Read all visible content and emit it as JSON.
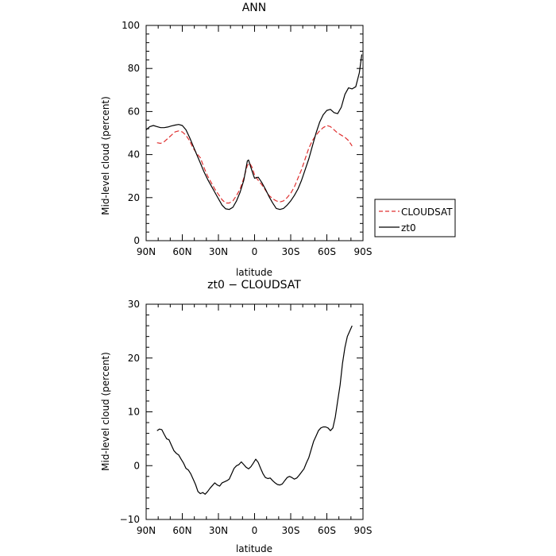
{
  "chart_data": [
    {
      "type": "line",
      "title": "ANN",
      "xlabel": "latitude",
      "ylabel": "Mid-level cloud (percent)",
      "xlim": [
        90,
        -90
      ],
      "ylim": [
        0,
        100
      ],
      "x_ticks": [
        90,
        60,
        30,
        0,
        -30,
        -60,
        -90
      ],
      "x_tick_labels": [
        "90N",
        "60N",
        "30N",
        "0",
        "30S",
        "60S",
        "90S"
      ],
      "y_ticks": [
        0,
        20,
        40,
        60,
        80,
        100
      ],
      "y_tick_labels": [
        "0",
        "20",
        "40",
        "60",
        "80",
        "100"
      ],
      "grid": false,
      "legend": "right",
      "series": [
        {
          "name": "CLOUDSAT",
          "color": "#e03030",
          "dash": "dashed",
          "x": [
            81,
            78,
            75,
            72,
            69,
            66,
            63,
            60,
            57,
            54,
            51,
            48,
            45,
            42,
            39,
            36,
            33,
            30,
            27,
            24,
            21,
            18,
            15,
            12,
            9,
            7,
            6,
            4,
            2,
            0,
            -3,
            -6,
            -9,
            -12,
            -15,
            -18,
            -21,
            -24,
            -27,
            -30,
            -33,
            -36,
            -39,
            -42,
            -45,
            -48,
            -51,
            -54,
            -57,
            -60,
            -63,
            -66,
            -69,
            -72,
            -75,
            -78,
            -81
          ],
          "y": [
            45.5,
            45.2,
            46,
            47.5,
            49,
            50.5,
            51,
            50.5,
            49,
            46.5,
            43,
            40.5,
            38.5,
            34,
            30,
            27,
            24,
            21.5,
            19,
            17.5,
            17.5,
            18.5,
            21,
            24,
            29,
            33,
            35,
            36,
            34,
            30.5,
            28,
            26,
            23.5,
            21,
            19.5,
            18.5,
            18,
            18.5,
            20,
            22,
            25,
            29,
            33,
            38,
            43,
            46.5,
            49,
            51,
            52.5,
            53.5,
            53,
            51.5,
            50,
            49,
            48,
            46.5,
            44
          ]
        },
        {
          "name": "zt0",
          "color": "#000000",
          "dash": "solid",
          "x": [
            90,
            87,
            84,
            81,
            78,
            75,
            72,
            69,
            66,
            63,
            60,
            57,
            54,
            51,
            48,
            45,
            42,
            39,
            36,
            33,
            30,
            27,
            24,
            21,
            18,
            15,
            12,
            9,
            7,
            6,
            5,
            3,
            1,
            0,
            -3,
            -6,
            -9,
            -12,
            -15,
            -18,
            -21,
            -24,
            -27,
            -30,
            -33,
            -36,
            -39,
            -42,
            -45,
            -48,
            -51,
            -54,
            -57,
            -60,
            -63,
            -66,
            -69,
            -72,
            -75,
            -78,
            -81,
            -84,
            -87,
            -89
          ],
          "y": [
            51.5,
            53,
            53.5,
            53,
            52.5,
            52.5,
            52.8,
            53.3,
            53.7,
            54,
            53.5,
            51.5,
            48,
            44,
            40,
            36,
            32,
            28.5,
            25.5,
            22.5,
            19.5,
            16.5,
            14.8,
            14.5,
            15.5,
            18.5,
            22.5,
            28,
            34,
            37,
            37.5,
            34,
            30.5,
            29,
            29.5,
            27,
            24,
            20.5,
            17.5,
            15,
            14.5,
            15,
            16.5,
            18.5,
            21,
            24,
            28,
            33,
            38,
            44,
            50,
            55,
            58.5,
            60.5,
            61,
            59.5,
            59,
            62,
            68,
            71,
            70.5,
            71.5,
            78,
            86.5
          ]
        }
      ]
    },
    {
      "type": "line",
      "title": "zt0 − CLOUDSAT",
      "xlabel": "latitude",
      "ylabel": "Mid-level cloud (percent)",
      "xlim": [
        90,
        -90
      ],
      "ylim": [
        -10,
        30
      ],
      "x_ticks": [
        90,
        60,
        30,
        0,
        -30,
        -60,
        -90
      ],
      "x_tick_labels": [
        "90N",
        "60N",
        "30N",
        "0",
        "30S",
        "60S",
        "90S"
      ],
      "y_ticks": [
        -10,
        0,
        10,
        20,
        30
      ],
      "y_tick_labels": [
        "−10",
        "0",
        "10",
        "20",
        "30"
      ],
      "grid": false,
      "series": [
        {
          "name": "",
          "color": "#000000",
          "dash": "solid",
          "x": [
            81,
            79,
            77,
            75,
            73,
            71,
            69,
            67,
            65,
            63,
            61,
            59,
            57,
            55,
            53,
            51,
            49,
            47,
            45,
            43,
            41,
            39,
            37,
            35,
            33,
            31,
            29,
            27,
            25,
            23,
            21,
            19,
            17,
            15,
            13,
            11,
            9,
            7,
            5,
            3,
            1,
            -1,
            -3,
            -5,
            -7,
            -9,
            -11,
            -13,
            -15,
            -17,
            -19,
            -21,
            -23,
            -25,
            -27,
            -29,
            -31,
            -33,
            -35,
            -37,
            -39,
            -41,
            -43,
            -45,
            -47,
            -49,
            -51,
            -53,
            -55,
            -57,
            -59,
            -61,
            -63,
            -65,
            -67,
            -69,
            -71,
            -73,
            -75,
            -77,
            -79,
            -81
          ],
          "y": [
            6.5,
            6.8,
            6.7,
            5.8,
            5,
            4.8,
            3.8,
            2.8,
            2.3,
            2,
            1.2,
            0.5,
            -0.5,
            -0.8,
            -1.5,
            -2.5,
            -3.5,
            -4.8,
            -5.2,
            -5,
            -5.3,
            -4.8,
            -4.2,
            -3.7,
            -3.2,
            -3.6,
            -3.8,
            -3.2,
            -3,
            -2.8,
            -2.5,
            -1.5,
            -0.5,
            0,
            0.2,
            0.7,
            0.2,
            -0.3,
            -0.6,
            -0.2,
            0.5,
            1.2,
            0.6,
            -0.5,
            -1.5,
            -2.2,
            -2.4,
            -2.3,
            -2.8,
            -3.2,
            -3.5,
            -3.6,
            -3.4,
            -2.8,
            -2.2,
            -2,
            -2.2,
            -2.5,
            -2.3,
            -1.8,
            -1.2,
            -0.6,
            0.5,
            1.5,
            3,
            4.5,
            5.5,
            6.5,
            7,
            7.2,
            7.2,
            7,
            6.5,
            7,
            9,
            12,
            15,
            19,
            22,
            24,
            25,
            26
          ]
        }
      ]
    }
  ]
}
